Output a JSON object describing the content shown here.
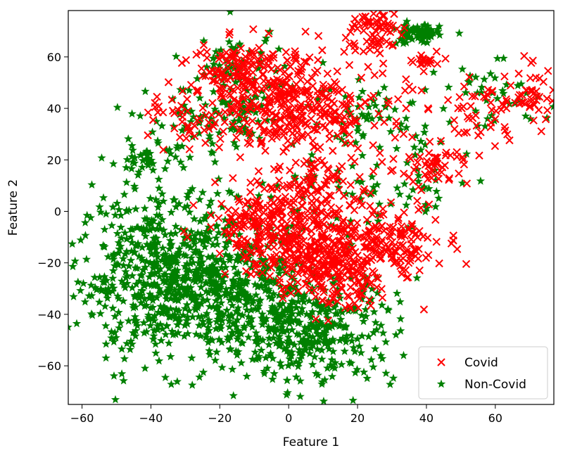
{
  "chart_data": {
    "type": "scatter",
    "title": "",
    "xlabel": "Feature 1",
    "ylabel": "Feature 2",
    "xlim": [
      -64,
      77
    ],
    "ylim": [
      -75,
      78
    ],
    "grid": false,
    "legend_position": "lower-right",
    "x_ticks": [
      "−60",
      "−40",
      "−20",
      "0",
      "20",
      "40",
      "60"
    ],
    "x_tick_values": [
      -60,
      -40,
      -20,
      0,
      20,
      40,
      60
    ],
    "y_ticks": [
      "−60",
      "−40",
      "−20",
      "0",
      "20",
      "40",
      "60"
    ],
    "y_tick_values": [
      -60,
      -40,
      -20,
      0,
      20,
      40,
      60
    ],
    "series": [
      {
        "name": "Covid",
        "marker": "x",
        "color": "#ff0000",
        "clusters": [
          {
            "cx": -5,
            "cy": 45,
            "sx": 11,
            "sy": 10,
            "n": 300
          },
          {
            "cx": -18,
            "cy": 55,
            "sx": 6,
            "sy": 6,
            "n": 60
          },
          {
            "cx": 25,
            "cy": 70,
            "sx": 4,
            "sy": 5,
            "n": 70
          },
          {
            "cx": 15,
            "cy": 38,
            "sx": 10,
            "sy": 8,
            "n": 110
          },
          {
            "cx": 42,
            "cy": 18,
            "sx": 5,
            "sy": 4,
            "n": 50
          },
          {
            "cx": 40,
            "cy": 58,
            "sx": 2,
            "sy": 1.5,
            "n": 20
          },
          {
            "cx": 55,
            "cy": 38,
            "sx": 6,
            "sy": 8,
            "n": 45
          },
          {
            "cx": 70,
            "cy": 45,
            "sx": 4,
            "sy": 6,
            "n": 45
          },
          {
            "cx": -8,
            "cy": -5,
            "sx": 8,
            "sy": 7,
            "n": 160
          },
          {
            "cx": 5,
            "cy": -15,
            "sx": 8,
            "sy": 8,
            "n": 210
          },
          {
            "cx": 20,
            "cy": -15,
            "sx": 9,
            "sy": 8,
            "n": 160
          },
          {
            "cx": 35,
            "cy": -10,
            "sx": 7,
            "sy": 6,
            "n": 70
          },
          {
            "cx": 8,
            "cy": 10,
            "sx": 10,
            "sy": 7,
            "n": 110
          },
          {
            "cx": -30,
            "cy": 35,
            "sx": 5,
            "sy": 6,
            "n": 35
          },
          {
            "cx": 15,
            "cy": -30,
            "sx": 8,
            "sy": 6,
            "n": 60
          }
        ]
      },
      {
        "name": "Non-Covid",
        "marker": "star",
        "color": "#008000",
        "clusters": [
          {
            "cx": -35,
            "cy": -25,
            "sx": 13,
            "sy": 16,
            "n": 650
          },
          {
            "cx": 5,
            "cy": -45,
            "sx": 13,
            "sy": 11,
            "n": 400
          },
          {
            "cx": -15,
            "cy": -30,
            "sx": 8,
            "sy": 10,
            "n": 180
          },
          {
            "cx": -15,
            "cy": 55,
            "sx": 7,
            "sy": 8,
            "n": 60
          },
          {
            "cx": -20,
            "cy": 35,
            "sx": 10,
            "sy": 7,
            "n": 90
          },
          {
            "cx": 37,
            "cy": 69,
            "sx": 3.5,
            "sy": 2,
            "n": 70
          },
          {
            "cx": 60,
            "cy": 45,
            "sx": 8,
            "sy": 6,
            "n": 40
          },
          {
            "cx": 25,
            "cy": 38,
            "sx": 10,
            "sy": 6,
            "n": 55
          },
          {
            "cx": 40,
            "cy": 15,
            "sx": 7,
            "sy": 10,
            "n": 30
          },
          {
            "cx": -40,
            "cy": 22,
            "sx": 4,
            "sy": 5,
            "n": 40
          },
          {
            "cx": 15,
            "cy": 5,
            "sx": 15,
            "sy": 10,
            "n": 60
          }
        ]
      }
    ]
  }
}
